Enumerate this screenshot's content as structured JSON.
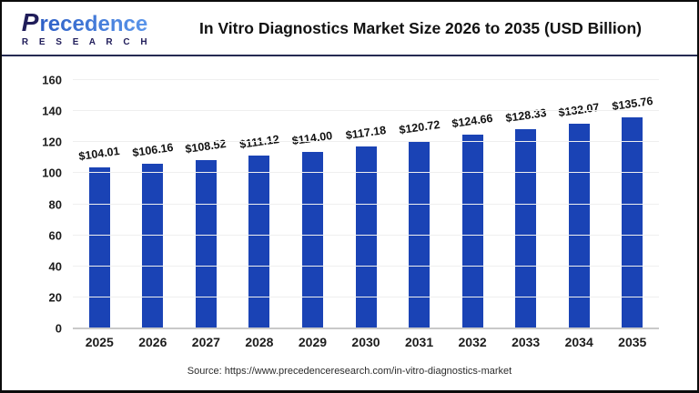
{
  "header": {
    "logo": {
      "initial": "P",
      "brand_rest": "recedence",
      "brand_sub": "R E S E A R C H",
      "color_navy": "#201d5a",
      "color_blue": "#3b79d6"
    },
    "title": "In Vitro Diagnostics Market Size 2026 to 2035 (USD Billion)"
  },
  "chart_data": {
    "type": "bar",
    "title": "In Vitro Diagnostics Market Size 2026 to 2035 (USD Billion)",
    "categories": [
      "2025",
      "2026",
      "2027",
      "2028",
      "2029",
      "2030",
      "2031",
      "2032",
      "2033",
      "2034",
      "2035"
    ],
    "values": [
      104.01,
      106.16,
      108.52,
      111.12,
      114.0,
      117.18,
      120.72,
      124.66,
      128.33,
      132.07,
      135.76
    ],
    "value_labels": [
      "$104.01",
      "$106.16",
      "$108.52",
      "$111.12",
      "$114.00",
      "$117.18",
      "$120.72",
      "$124.66",
      "$128.33",
      "$132.07",
      "$135.76"
    ],
    "xlabel": "",
    "ylabel": "",
    "ylim": [
      0,
      160
    ],
    "yticks": [
      0,
      20,
      40,
      60,
      80,
      100,
      120,
      140,
      160
    ],
    "grid": true,
    "legend": false,
    "bar_color": "#1a43b5",
    "gridline_color": "#efefef",
    "baseline_color": "#c9c9c9"
  },
  "footer": {
    "source": "Source: https://www.precedenceresearch.com/in-vitro-diagnostics-market"
  }
}
